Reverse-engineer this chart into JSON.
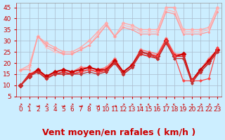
{
  "x": [
    0,
    1,
    2,
    3,
    4,
    5,
    6,
    7,
    8,
    9,
    10,
    11,
    12,
    13,
    14,
    15,
    16,
    17,
    18,
    19,
    20,
    21,
    22,
    23
  ],
  "series": [
    {
      "color": "#ffaaaa",
      "linewidth": 1.0,
      "marker": "D",
      "markersize": 2.5,
      "y": [
        17,
        19,
        32,
        29,
        27,
        25,
        25,
        27,
        30,
        34,
        38,
        32,
        38,
        37,
        35,
        35,
        35,
        45,
        45,
        35,
        35,
        35,
        36,
        45
      ]
    },
    {
      "color": "#ffbbbb",
      "linewidth": 0.9,
      "marker": "+",
      "markersize": 4,
      "y": [
        17,
        18,
        32,
        27,
        25,
        24,
        24,
        26,
        28,
        33,
        37,
        32,
        37,
        36,
        34,
        34,
        34,
        44,
        43,
        34,
        34,
        34,
        35,
        44
      ]
    },
    {
      "color": "#ff9999",
      "linewidth": 0.9,
      "marker": "s",
      "markersize": 2.0,
      "y": [
        17,
        17,
        32,
        28,
        26,
        24,
        24,
        26,
        28,
        32,
        37,
        32,
        36,
        35,
        33,
        33,
        33,
        43,
        42,
        33,
        33,
        33,
        34,
        43
      ]
    },
    {
      "color": "#ff7777",
      "linewidth": 1.1,
      "marker": "D",
      "markersize": 2.5,
      "y": [
        10,
        15,
        17,
        13,
        16,
        17,
        16,
        18,
        18,
        17,
        18,
        22,
        16,
        19,
        26,
        25,
        24,
        31,
        24,
        24,
        12,
        17,
        22,
        26
      ]
    },
    {
      "color": "#cc0000",
      "linewidth": 1.5,
      "marker": "D",
      "markersize": 3.5,
      "y": [
        10,
        14,
        17,
        14,
        16,
        17,
        16,
        17,
        18,
        17,
        17,
        21,
        16,
        19,
        25,
        24,
        23,
        30,
        23,
        24,
        12,
        17,
        21,
        26
      ]
    },
    {
      "color": "#dd2222",
      "linewidth": 1.1,
      "marker": "D",
      "markersize": 2.5,
      "y": [
        10,
        15,
        16,
        13,
        15,
        16,
        15,
        16,
        17,
        16,
        17,
        20,
        15,
        18,
        24,
        23,
        22,
        29,
        23,
        23,
        12,
        16,
        20,
        25
      ]
    },
    {
      "color": "#ff4444",
      "linewidth": 0.9,
      "marker": "D",
      "markersize": 2.0,
      "y": [
        10,
        14,
        16,
        13,
        15,
        15,
        15,
        16,
        17,
        16,
        16,
        20,
        15,
        18,
        25,
        24,
        23,
        30,
        23,
        12,
        12,
        12,
        13,
        27
      ]
    },
    {
      "color": "#bb3333",
      "linewidth": 0.9,
      "marker": "D",
      "markersize": 2.0,
      "y": [
        10,
        14,
        16,
        13,
        15,
        15,
        15,
        15,
        16,
        15,
        16,
        20,
        15,
        18,
        25,
        24,
        22,
        29,
        22,
        22,
        11,
        16,
        20,
        25
      ]
    }
  ],
  "xlim": [
    0,
    23
  ],
  "ylim": [
    5,
    47
  ],
  "yticks": [
    5,
    10,
    15,
    20,
    25,
    30,
    35,
    40,
    45
  ],
  "xticks": [
    0,
    1,
    2,
    3,
    4,
    5,
    6,
    7,
    8,
    9,
    10,
    11,
    12,
    13,
    14,
    15,
    16,
    17,
    18,
    19,
    20,
    21,
    22,
    23
  ],
  "xlabel": "Vent moyen/en rafales ( km/h )",
  "xlabel_color": "#cc0000",
  "xlabel_fontsize": 9,
  "background_color": "#cceeff",
  "grid_color": "#aabbcc",
  "tick_color": "#cc0000",
  "tick_labelsize": 6.5,
  "arrow_symbols": [
    "↗",
    "↗",
    "→",
    "↗",
    "↗",
    "→",
    "↗",
    "→",
    "↗",
    "→",
    "↗",
    "→",
    "↗",
    "↗",
    "↑",
    "↖",
    "↑",
    "↗",
    "↖",
    "↑",
    "↑",
    "↗",
    "↗",
    "↗"
  ]
}
